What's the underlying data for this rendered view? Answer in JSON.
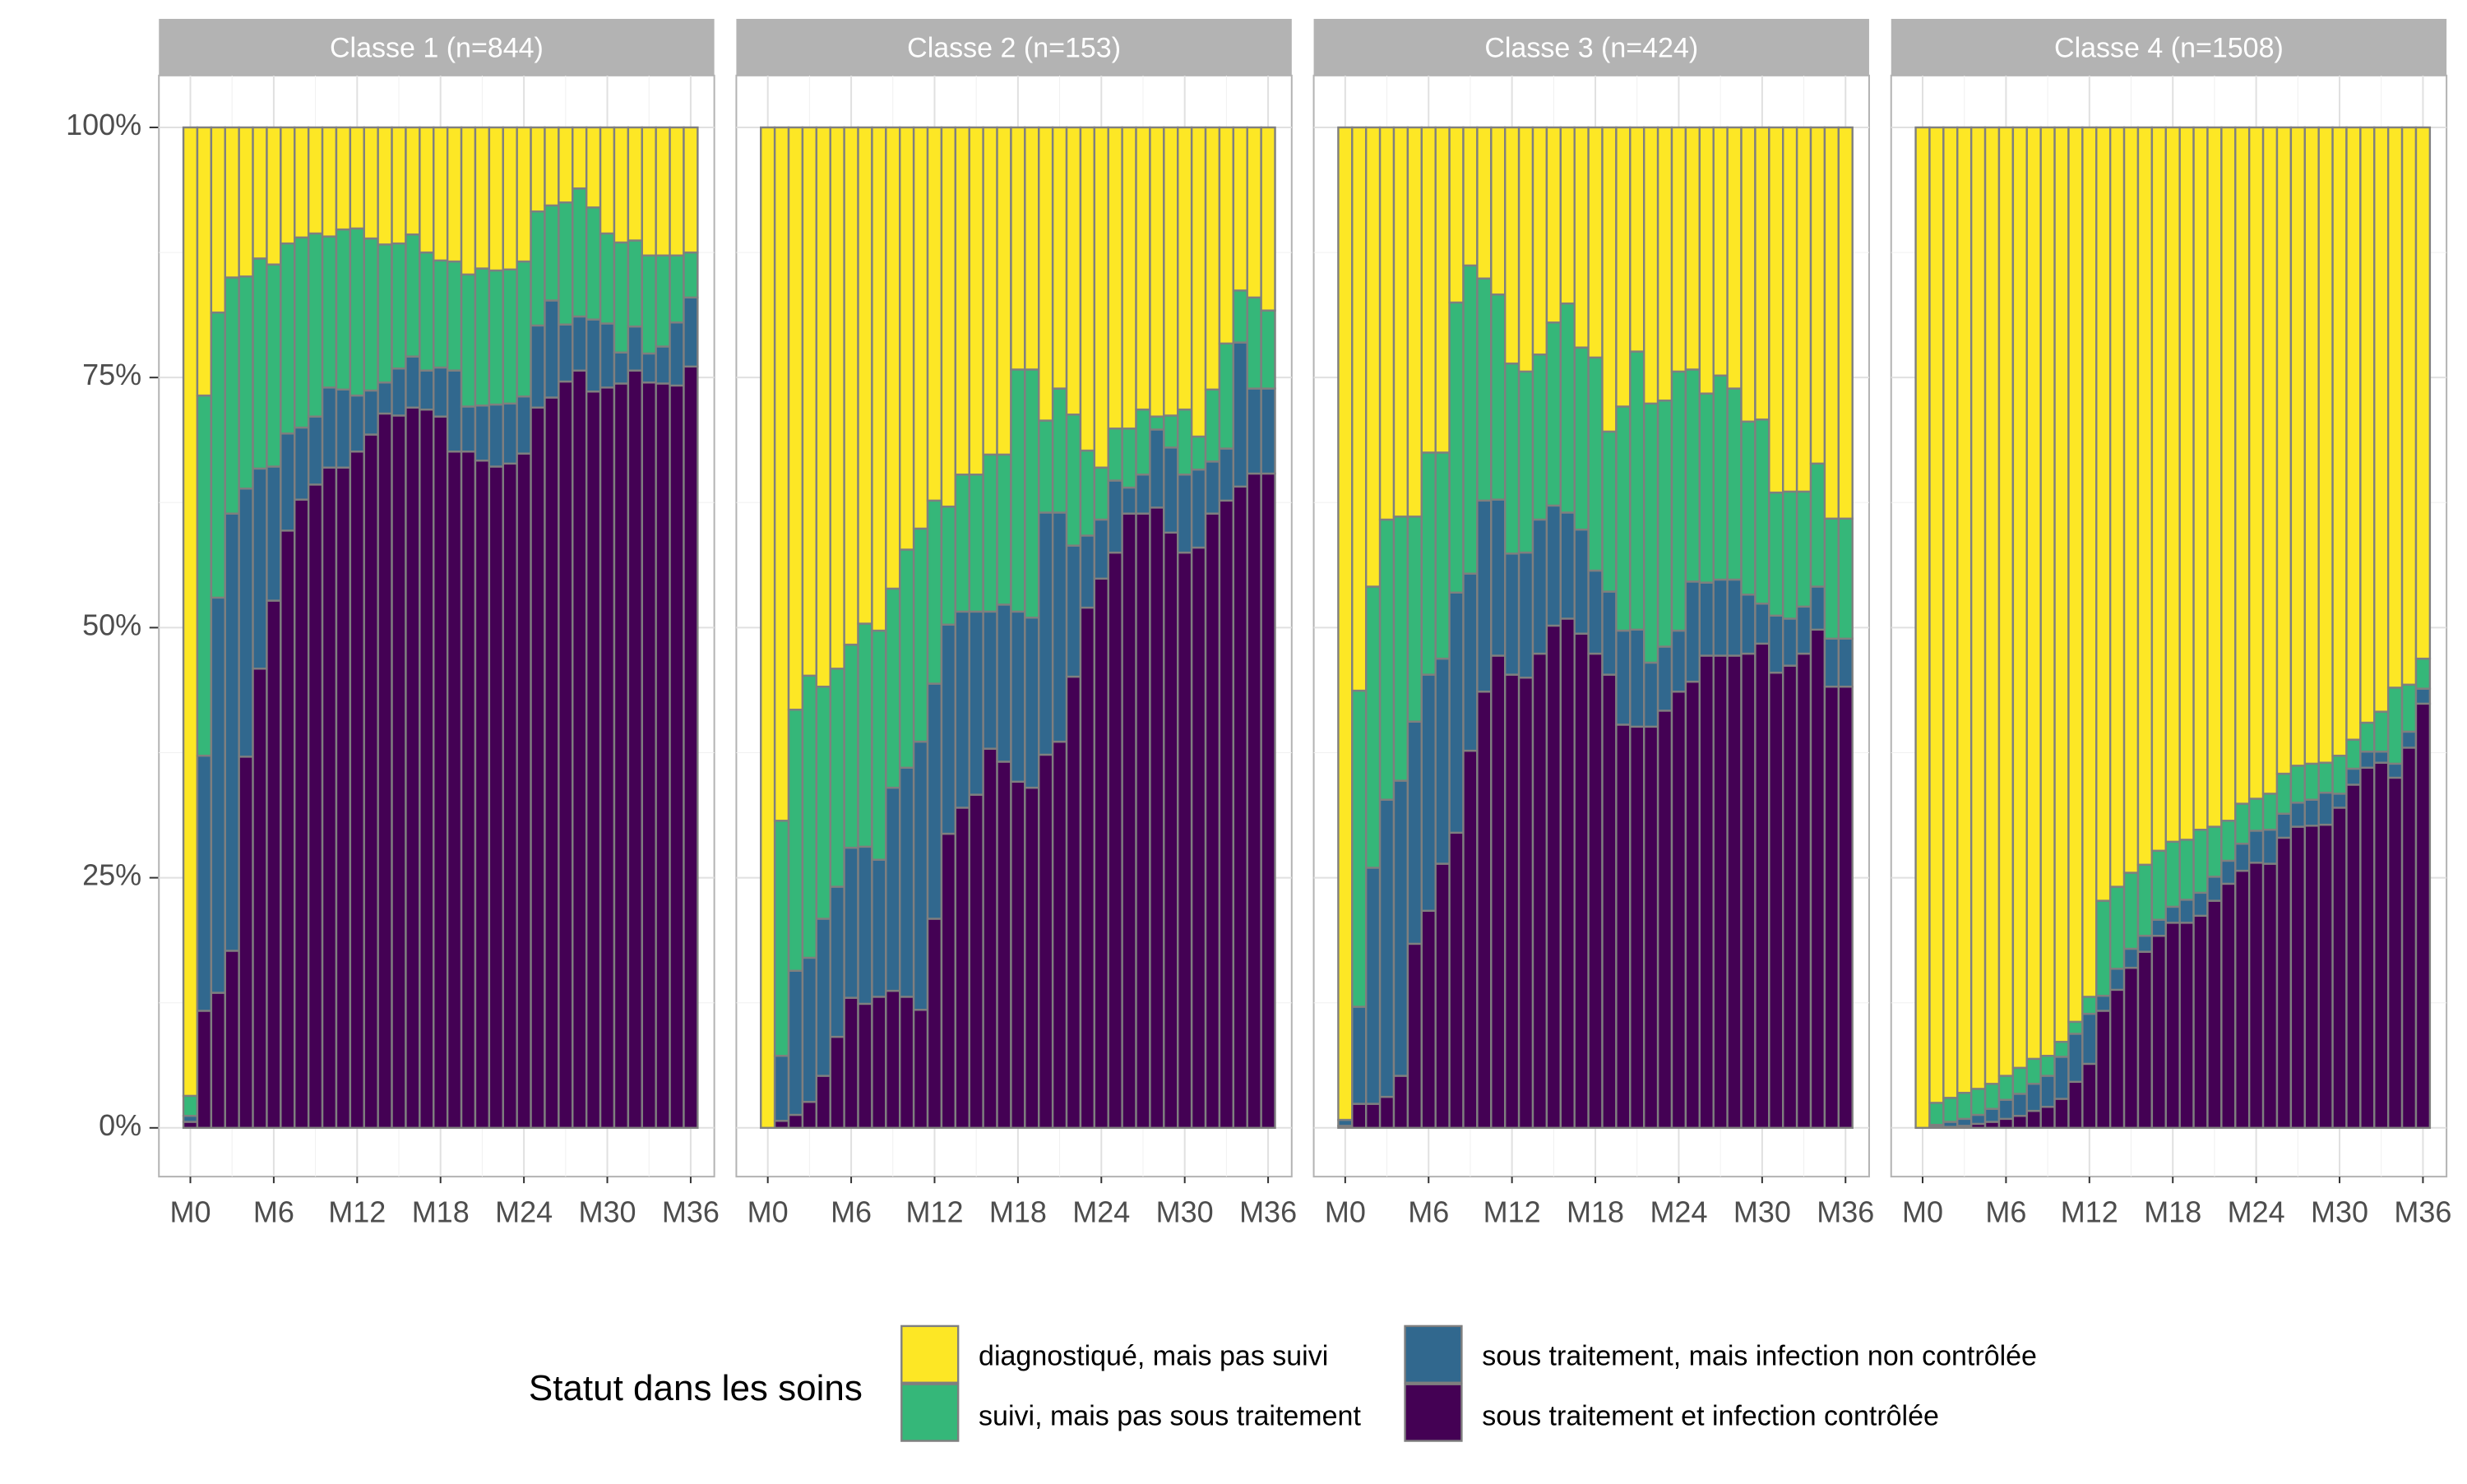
{
  "chart_data": {
    "type": "bar",
    "stacked": true,
    "percent": true,
    "grid": true,
    "x_ticks": [
      "M0",
      "M6",
      "M12",
      "M18",
      "M24",
      "M30",
      "M36"
    ],
    "y_ticks": [
      "0%",
      "25%",
      "50%",
      "75%",
      "100%"
    ],
    "ylim": [
      0,
      1
    ],
    "legend": {
      "title": "Statut dans les soins",
      "position": "bottom",
      "items": [
        {
          "key": "diag",
          "label": "diagnostiqué, mais pas suivi",
          "color": "#FDE725"
        },
        {
          "key": "suivi",
          "label": "suivi, mais pas sous traitement",
          "color": "#35B779"
        },
        {
          "key": "nc",
          "label": "sous traitement, mais infection non contrôlée",
          "color": "#31688E"
        },
        {
          "key": "ctrl",
          "label": "sous traitement et infection contrôlée",
          "color": "#440154"
        }
      ]
    },
    "panels": [
      {
        "title": "Classe 1 (n=844)",
        "controlled": [
          0.006,
          0.117,
          0.135,
          0.177,
          0.371,
          0.459,
          0.527,
          0.597,
          0.628,
          0.643,
          0.66,
          0.66,
          0.676,
          0.693,
          0.714,
          0.712,
          0.72,
          0.718,
          0.711,
          0.676,
          0.676,
          0.667,
          0.661,
          0.664,
          0.674,
          0.72,
          0.73,
          0.746,
          0.757,
          0.736,
          0.74,
          0.744,
          0.757,
          0.745,
          0.744,
          0.742,
          0.761
        ],
        "not_controlled": [
          0.006,
          0.255,
          0.395,
          0.437,
          0.268,
          0.2,
          0.134,
          0.097,
          0.072,
          0.068,
          0.08,
          0.078,
          0.056,
          0.044,
          0.031,
          0.047,
          0.051,
          0.039,
          0.049,
          0.081,
          0.045,
          0.055,
          0.062,
          0.06,
          0.057,
          0.082,
          0.097,
          0.057,
          0.054,
          0.072,
          0.064,
          0.031,
          0.044,
          0.029,
          0.037,
          0.063,
          0.069
        ],
        "followed": [
          0.02,
          0.36,
          0.285,
          0.236,
          0.212,
          0.21,
          0.202,
          0.19,
          0.19,
          0.183,
          0.151,
          0.16,
          0.167,
          0.152,
          0.138,
          0.125,
          0.122,
          0.118,
          0.107,
          0.109,
          0.132,
          0.137,
          0.134,
          0.134,
          0.135,
          0.114,
          0.095,
          0.122,
          0.128,
          0.112,
          0.09,
          0.11,
          0.086,
          0.098,
          0.091,
          0.067,
          0.045
        ]
      },
      {
        "title": "Classe 2 (n=153)",
        "controlled": [
          0.0,
          0.007,
          0.013,
          0.026,
          0.052,
          0.091,
          0.13,
          0.124,
          0.131,
          0.137,
          0.131,
          0.118,
          0.209,
          0.294,
          0.32,
          0.333,
          0.379,
          0.366,
          0.346,
          0.34,
          0.373,
          0.386,
          0.451,
          0.52,
          0.549,
          0.575,
          0.614,
          0.614,
          0.62,
          0.595,
          0.575,
          0.58,
          0.614,
          0.627,
          0.641,
          0.654,
          0.654
        ],
        "not_controlled": [
          0.0,
          0.065,
          0.144,
          0.144,
          0.157,
          0.15,
          0.15,
          0.157,
          0.137,
          0.203,
          0.229,
          0.268,
          0.235,
          0.209,
          0.196,
          0.183,
          0.137,
          0.157,
          0.17,
          0.17,
          0.242,
          0.229,
          0.131,
          0.072,
          0.059,
          0.072,
          0.026,
          0.039,
          0.078,
          0.085,
          0.078,
          0.078,
          0.052,
          0.052,
          0.144,
          0.085,
          0.085
        ],
        "followed": [
          0.0,
          0.235,
          0.261,
          0.282,
          0.232,
          0.218,
          0.203,
          0.223,
          0.229,
          0.199,
          0.218,
          0.213,
          0.183,
          0.118,
          0.137,
          0.137,
          0.157,
          0.15,
          0.242,
          0.248,
          0.092,
          0.124,
          0.131,
          0.085,
          0.052,
          0.052,
          0.059,
          0.065,
          0.013,
          0.032,
          0.065,
          0.033,
          0.072,
          0.105,
          0.052,
          0.091,
          0.078
        ]
      },
      {
        "title": "Classe 3 (n=424)",
        "controlled": [
          0.002,
          0.024,
          0.024,
          0.031,
          0.052,
          0.184,
          0.217,
          0.264,
          0.295,
          0.377,
          0.436,
          0.472,
          0.453,
          0.45,
          0.474,
          0.502,
          0.509,
          0.494,
          0.474,
          0.453,
          0.403,
          0.401,
          0.401,
          0.417,
          0.436,
          0.446,
          0.472,
          0.472,
          0.472,
          0.474,
          0.484,
          0.455,
          0.462,
          0.474,
          0.498,
          0.441,
          0.441
        ],
        "not_controlled": [
          0.006,
          0.097,
          0.236,
          0.297,
          0.295,
          0.222,
          0.236,
          0.205,
          0.24,
          0.177,
          0.191,
          0.156,
          0.121,
          0.125,
          0.134,
          0.12,
          0.106,
          0.104,
          0.083,
          0.083,
          0.094,
          0.097,
          0.064,
          0.064,
          0.061,
          0.1,
          0.073,
          0.076,
          0.076,
          0.059,
          0.04,
          0.057,
          0.047,
          0.047,
          0.043,
          0.048,
          0.048
        ],
        "followed": [
          0.0,
          0.316,
          0.281,
          0.28,
          0.264,
          0.205,
          0.222,
          0.206,
          0.29,
          0.308,
          0.222,
          0.205,
          0.19,
          0.181,
          0.165,
          0.183,
          0.209,
          0.182,
          0.213,
          0.16,
          0.224,
          0.278,
          0.259,
          0.246,
          0.259,
          0.212,
          0.189,
          0.204,
          0.191,
          0.173,
          0.184,
          0.123,
          0.127,
          0.115,
          0.123,
          0.12,
          0.12
        ]
      },
      {
        "title": "Classe 4 (n=1508)",
        "controlled": [
          0.0,
          0.001,
          0.001,
          0.002,
          0.004,
          0.006,
          0.009,
          0.012,
          0.017,
          0.021,
          0.029,
          0.046,
          0.064,
          0.117,
          0.138,
          0.16,
          0.176,
          0.192,
          0.205,
          0.205,
          0.212,
          0.227,
          0.244,
          0.257,
          0.265,
          0.264,
          0.29,
          0.301,
          0.302,
          0.303,
          0.32,
          0.343,
          0.36,
          0.365,
          0.35,
          0.38,
          0.424
        ],
        "not_controlled": [
          0.0,
          0.002,
          0.005,
          0.007,
          0.009,
          0.013,
          0.019,
          0.022,
          0.027,
          0.031,
          0.042,
          0.048,
          0.05,
          0.015,
          0.021,
          0.019,
          0.016,
          0.016,
          0.016,
          0.023,
          0.023,
          0.024,
          0.023,
          0.027,
          0.032,
          0.034,
          0.024,
          0.024,
          0.026,
          0.032,
          0.014,
          0.016,
          0.016,
          0.011,
          0.014,
          0.016,
          0.015
        ],
        "followed": [
          0.0,
          0.022,
          0.024,
          0.026,
          0.026,
          0.025,
          0.024,
          0.026,
          0.025,
          0.02,
          0.015,
          0.012,
          0.017,
          0.095,
          0.082,
          0.076,
          0.071,
          0.069,
          0.065,
          0.06,
          0.063,
          0.05,
          0.04,
          0.04,
          0.032,
          0.036,
          0.04,
          0.037,
          0.036,
          0.03,
          0.038,
          0.029,
          0.029,
          0.04,
          0.076,
          0.047,
          0.03
        ]
      }
    ]
  }
}
